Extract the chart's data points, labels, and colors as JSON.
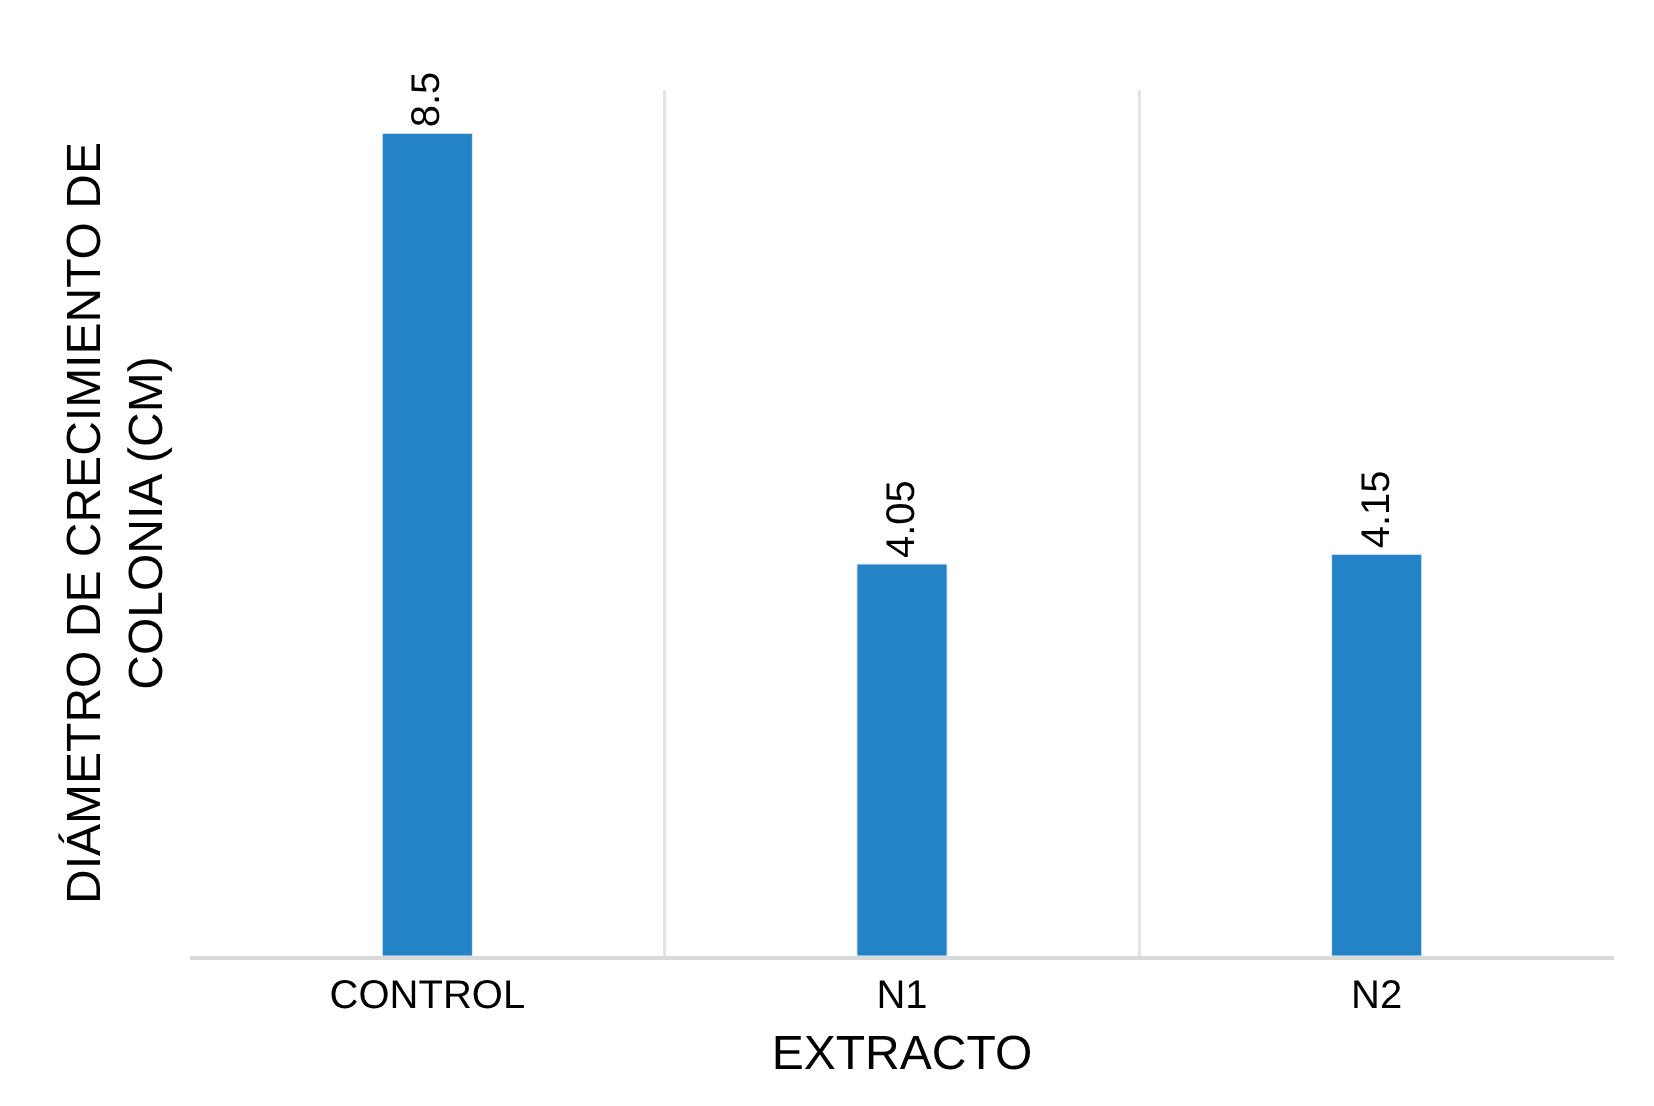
{
  "chart_data": {
    "type": "bar",
    "xlabel": "EXTRACTO",
    "ylabel": "DIÁMETRO DE CRECIMIENTO DE\nCOLONIA (CM)",
    "categories": [
      "CONTROL",
      "N1",
      "N2"
    ],
    "series": [
      {
        "color": "#2383c6",
        "values": [
          8.5,
          4.05,
          4.15
        ]
      }
    ],
    "data_labels": true,
    "grid": "x",
    "legend": false
  }
}
